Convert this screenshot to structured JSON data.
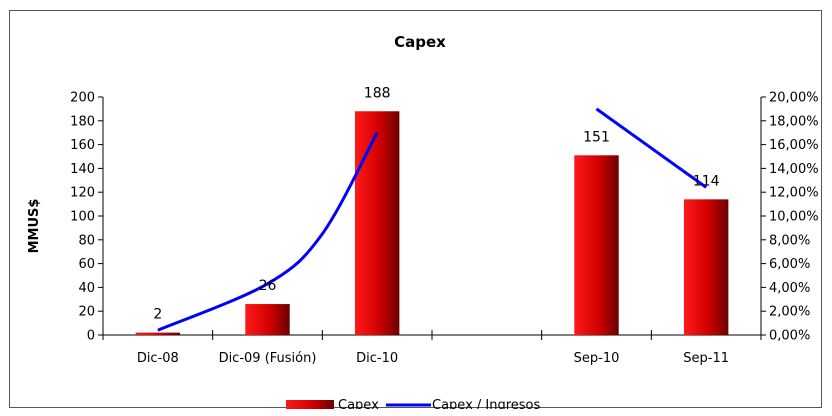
{
  "chart_data": {
    "type": "bar",
    "title": "Capex",
    "ylabel": "MMUS$",
    "categories": [
      "Dic-08",
      "Dic-09 (Fusión)",
      "Dic-10",
      "",
      "Sep-10",
      "Sep-11"
    ],
    "ylim": [
      0,
      200
    ],
    "y_ticks": [
      "0",
      "20",
      "40",
      "60",
      "80",
      "100",
      "120",
      "140",
      "160",
      "180",
      "200"
    ],
    "y2lim": [
      0,
      0.2
    ],
    "y2_ticks": [
      "0,00%",
      "2,00%",
      "4,00%",
      "6,00%",
      "8,00%",
      "10,00%",
      "12,00%",
      "14,00%",
      "16,00%",
      "18,00%",
      "20,00%"
    ],
    "legend_position": "bottom",
    "series": [
      {
        "name": "Capex",
        "kind": "bar",
        "axis": "left",
        "color": "#e00000",
        "values": [
          2,
          26,
          188,
          null,
          151,
          114
        ],
        "labels": [
          "2",
          "26",
          "188",
          "",
          "151",
          "114"
        ]
      },
      {
        "name": "Capex / Ingresos",
        "kind": "line",
        "axis": "right",
        "color": "#0000ff",
        "segments": [
          [
            [
              0,
              0.004
            ],
            [
              1,
              0.043
            ],
            [
              1.5,
              0.085
            ],
            [
              2,
              0.17
            ]
          ],
          [
            [
              4,
              0.19
            ],
            [
              5,
              0.124
            ]
          ]
        ]
      }
    ]
  }
}
